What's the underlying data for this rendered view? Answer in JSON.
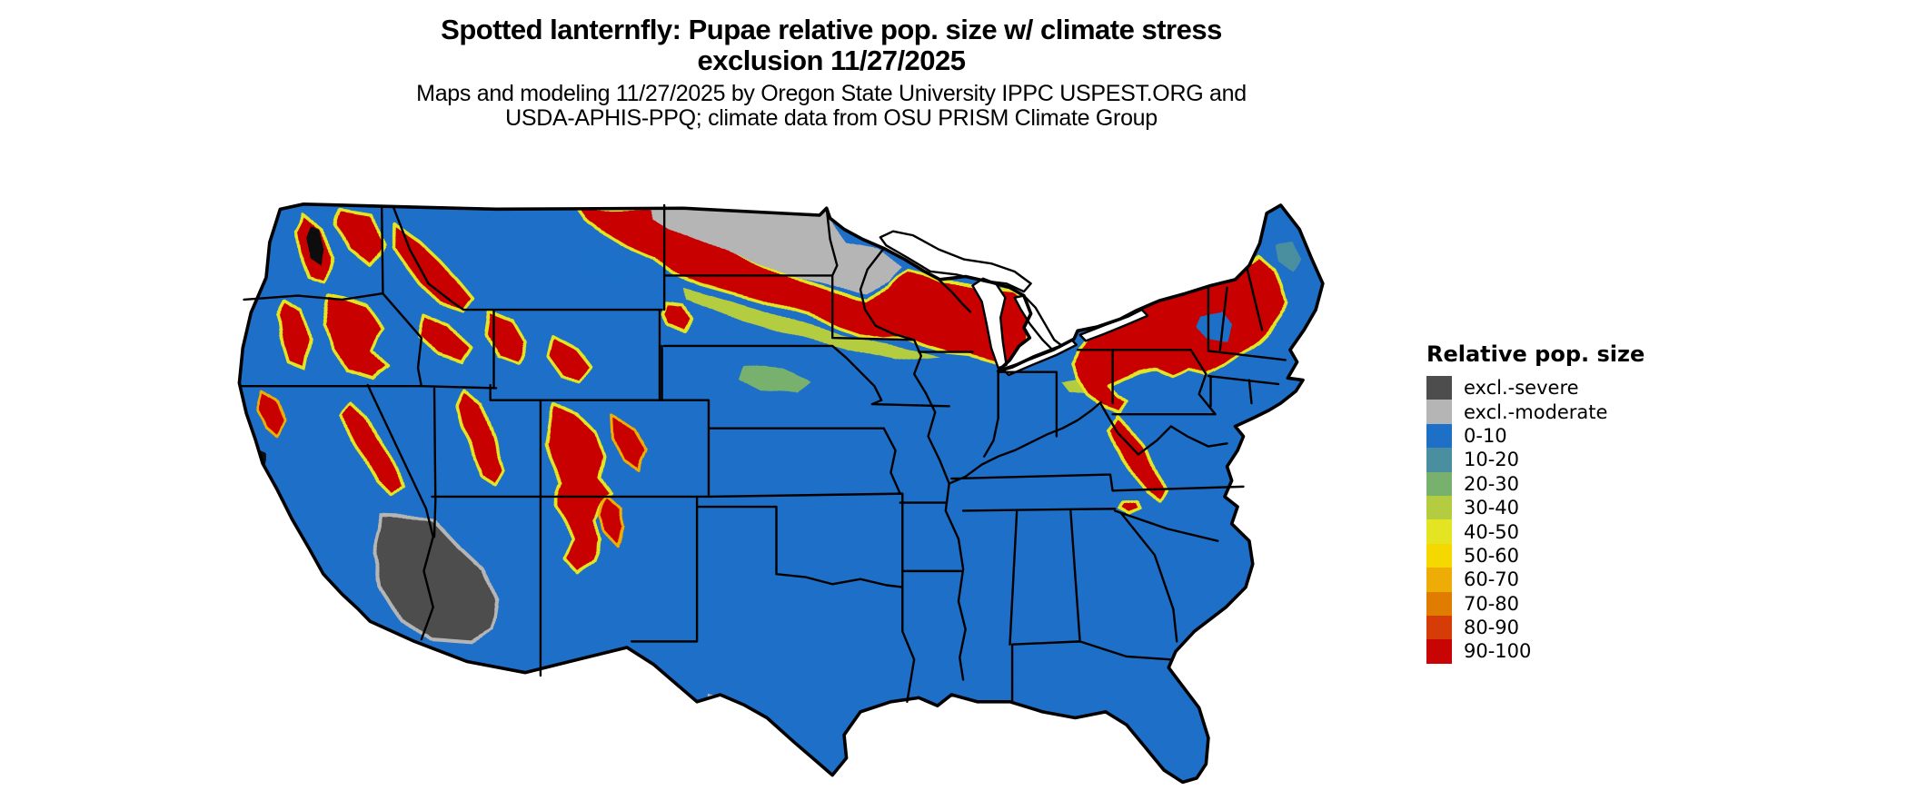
{
  "title": {
    "line1": "Spotted lanternfly: Pupae relative pop. size w/ climate stress",
    "line2": "exclusion 11/27/2025"
  },
  "subtitle": {
    "line1": "Maps and modeling 11/27/2025 by Oregon State University IPPC USPEST.ORG and",
    "line2": "USDA-APHIS-PPQ; climate data from OSU PRISM Climate Group"
  },
  "legend": {
    "title": "Relative pop. size",
    "items": [
      {
        "label": "excl.-severe",
        "color": "#4d4d4d"
      },
      {
        "label": "excl.-moderate",
        "color": "#b5b5b5"
      },
      {
        "label": "0-10",
        "color": "#1d6fc7"
      },
      {
        "label": "10-20",
        "color": "#4a8fa0"
      },
      {
        "label": "20-30",
        "color": "#78b06d"
      },
      {
        "label": "30-40",
        "color": "#b4cc40"
      },
      {
        "label": "40-50",
        "color": "#e3e523"
      },
      {
        "label": "50-60",
        "color": "#f5d800"
      },
      {
        "label": "60-70",
        "color": "#eead06"
      },
      {
        "label": "70-80",
        "color": "#e07c00"
      },
      {
        "label": "80-90",
        "color": "#d53c08"
      },
      {
        "label": "90-100",
        "color": "#c80404"
      }
    ]
  },
  "map": {
    "background_color": "#ffffff",
    "border_color": "#000000",
    "water_color": "#ffffff"
  }
}
